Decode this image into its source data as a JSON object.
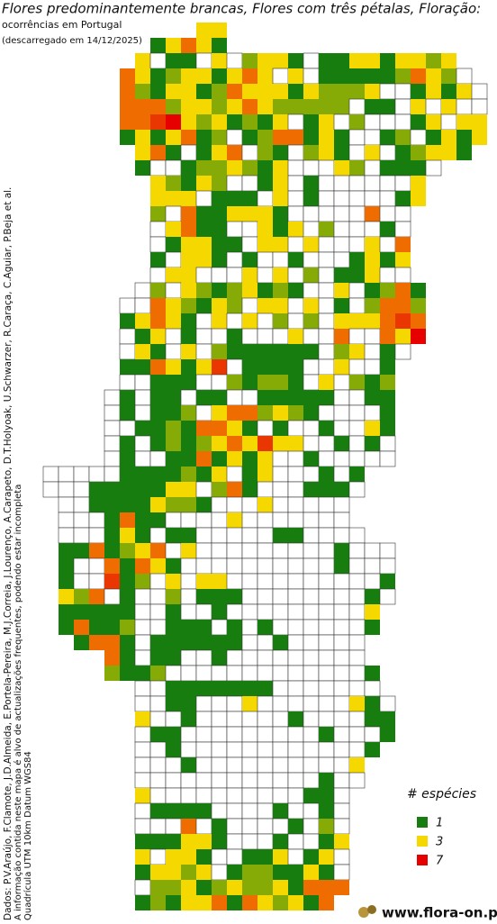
{
  "header": {
    "title": "Flores predominantemente brancas, Flores com três pétalas, Floração:",
    "subtitle": "ocorrências em Portugal",
    "download": "(descarregado em 14/12/2025)"
  },
  "credits": [
    "Dados: P.V.Araújo, F.Clamote, J.D.Almeida, E.Portela-Pereira, M.J.Correia, J.Lourenço, A.Carapeto, D.T.Holyoak, U.Schwarzer, R.Caraça, C.Aguiar, P.Beja et al.",
    "A informação contida neste mapa é alvo de actualizações frequentes, podendo estar incompleta",
    "Quadrícula UTM 10km Datum WGS84"
  ],
  "legend": {
    "title": "# espécies",
    "items": [
      {
        "value": 1,
        "color": "#177d0e"
      },
      {
        "value": 3,
        "color": "#f5d800"
      },
      {
        "value": 7,
        "color": "#e60000"
      }
    ]
  },
  "logo": "www.flora-on.pt",
  "grid": {
    "rows": [
      [
        null,
        null,
        null,
        null,
        null,
        null,
        null,
        null,
        null,
        null,
        3,
        3
      ],
      [
        null,
        null,
        null,
        null,
        null,
        null,
        null,
        1,
        3,
        5,
        3,
        1
      ],
      [
        null,
        null,
        null,
        null,
        null,
        null,
        3,
        0,
        1,
        1,
        0,
        3,
        0,
        2,
        3,
        3,
        1,
        0,
        1,
        1,
        3,
        3,
        1,
        3,
        3,
        2,
        3
      ],
      [
        null,
        null,
        null,
        null,
        null,
        5,
        3,
        1,
        2,
        3,
        3,
        1,
        3,
        5,
        3,
        0,
        3,
        0,
        1,
        1,
        1,
        1,
        1,
        2,
        5,
        3,
        2,
        0
      ],
      [
        null,
        null,
        null,
        null,
        null,
        5,
        2,
        1,
        3,
        3,
        1,
        2,
        5,
        3,
        3,
        3,
        1,
        3,
        2,
        2,
        2,
        3,
        0,
        0,
        1,
        3,
        1,
        3,
        0
      ],
      [
        null,
        null,
        null,
        null,
        null,
        5,
        5,
        5,
        2,
        3,
        3,
        2,
        3,
        5,
        3,
        2,
        2,
        2,
        2,
        2,
        0,
        1,
        1,
        0,
        3,
        0,
        3,
        0,
        0
      ],
      [
        null,
        null,
        null,
        null,
        null,
        5,
        5,
        6,
        7,
        3,
        2,
        3,
        1,
        2,
        1,
        3,
        0,
        1,
        3,
        0,
        2,
        0,
        0,
        0,
        1,
        3,
        0,
        3,
        3
      ],
      [
        null,
        null,
        null,
        null,
        null,
        1,
        3,
        1,
        3,
        5,
        1,
        2,
        0,
        1,
        2,
        5,
        5,
        1,
        3,
        1,
        0,
        0,
        1,
        2,
        0,
        1,
        3,
        1,
        3
      ],
      [
        null,
        null,
        null,
        null,
        null,
        null,
        3,
        5,
        1,
        0,
        1,
        3,
        5,
        0,
        2,
        1,
        0,
        2,
        3,
        1,
        0,
        3,
        0,
        1,
        2,
        3,
        3,
        1
      ],
      [
        null,
        null,
        null,
        null,
        null,
        null,
        1,
        0,
        0,
        1,
        2,
        2,
        3,
        2,
        1,
        3,
        0,
        0,
        0,
        3,
        2,
        0,
        1,
        1,
        1,
        0
      ],
      [
        null,
        null,
        null,
        null,
        null,
        null,
        null,
        3,
        2,
        1,
        3,
        2,
        0,
        0,
        1,
        3,
        0,
        1,
        0,
        0,
        0,
        0,
        0,
        0,
        3
      ],
      [
        null,
        null,
        null,
        null,
        null,
        null,
        null,
        3,
        3,
        3,
        0,
        1,
        1,
        1,
        0,
        3,
        0,
        1,
        0,
        0,
        0,
        0,
        0,
        1,
        3
      ],
      [
        null,
        null,
        null,
        null,
        null,
        null,
        null,
        2,
        0,
        5,
        1,
        1,
        3,
        3,
        3,
        1,
        0,
        0,
        0,
        0,
        0,
        5,
        0,
        0
      ],
      [
        null,
        null,
        null,
        null,
        null,
        null,
        null,
        0,
        3,
        5,
        1,
        1,
        0,
        0,
        3,
        1,
        3,
        0,
        2,
        0,
        0,
        0,
        1,
        0
      ],
      [
        null,
        null,
        null,
        null,
        null,
        null,
        null,
        0,
        1,
        3,
        3,
        1,
        1,
        0,
        3,
        3,
        0,
        3,
        0,
        0,
        0,
        3,
        0,
        5
      ],
      [
        null,
        null,
        null,
        null,
        null,
        null,
        null,
        1,
        0,
        3,
        3,
        1,
        0,
        1,
        0,
        0,
        1,
        0,
        0,
        0,
        1,
        3,
        1,
        3
      ],
      [
        null,
        null,
        null,
        null,
        null,
        null,
        null,
        0,
        3,
        3,
        0,
        0,
        0,
        3,
        0,
        3,
        0,
        2,
        0,
        1,
        1,
        3,
        0,
        0
      ],
      [
        null,
        null,
        null,
        null,
        null,
        null,
        0,
        2,
        0,
        3,
        2,
        1,
        2,
        3,
        1,
        2,
        1,
        0,
        0,
        3,
        0,
        1,
        2,
        5,
        1
      ],
      [
        null,
        null,
        null,
        null,
        null,
        0,
        0,
        5,
        3,
        2,
        1,
        3,
        2,
        0,
        3,
        3,
        0,
        3,
        0,
        1,
        0,
        2,
        5,
        5,
        2
      ],
      [
        null,
        null,
        null,
        null,
        null,
        1,
        3,
        5,
        3,
        1,
        0,
        3,
        0,
        3,
        0,
        2,
        0,
        2,
        0,
        3,
        3,
        3,
        5,
        6,
        5
      ],
      [
        null,
        null,
        null,
        null,
        null,
        0,
        1,
        3,
        0,
        1,
        0,
        0,
        1,
        0,
        0,
        0,
        3,
        0,
        0,
        5,
        0,
        0,
        5,
        3,
        7
      ],
      [
        null,
        null,
        null,
        null,
        null,
        0,
        3,
        1,
        0,
        3,
        0,
        2,
        1,
        1,
        1,
        1,
        1,
        1,
        0,
        2,
        3,
        0,
        1,
        0
      ],
      [
        null,
        null,
        null,
        null,
        null,
        1,
        1,
        5,
        3,
        1,
        3,
        6,
        0,
        1,
        1,
        1,
        1,
        0,
        0,
        3,
        0,
        0,
        1
      ],
      [
        null,
        null,
        null,
        null,
        null,
        0,
        0,
        1,
        1,
        1,
        0,
        0,
        2,
        1,
        2,
        2,
        1,
        0,
        3,
        0,
        2,
        1,
        2
      ],
      [
        null,
        null,
        null,
        null,
        0,
        1,
        0,
        1,
        1,
        0,
        1,
        1,
        0,
        0,
        1,
        1,
        1,
        1,
        1,
        0,
        0,
        1,
        1
      ],
      [
        null,
        null,
        null,
        null,
        0,
        1,
        0,
        1,
        1,
        2,
        0,
        3,
        5,
        5,
        2,
        3,
        2,
        1,
        0,
        0,
        0,
        0,
        1
      ],
      [
        null,
        null,
        null,
        null,
        0,
        0,
        1,
        1,
        2,
        1,
        5,
        5,
        3,
        1,
        0,
        1,
        0,
        0,
        1,
        0,
        0,
        3,
        1
      ],
      [
        null,
        null,
        null,
        null,
        0,
        1,
        0,
        1,
        2,
        1,
        2,
        3,
        5,
        3,
        6,
        3,
        3,
        0,
        0,
        1,
        0,
        1,
        0
      ],
      [
        null,
        null,
        null,
        null,
        0,
        1,
        0,
        0,
        1,
        1,
        5,
        1,
        3,
        1,
        3,
        0,
        0,
        1,
        0,
        0,
        0,
        0,
        0
      ],
      [
        0,
        0,
        0,
        0,
        0,
        1,
        1,
        1,
        1,
        2,
        1,
        3,
        0,
        1,
        3,
        0,
        0,
        0,
        1,
        0,
        1
      ],
      [
        0,
        0,
        0,
        1,
        1,
        1,
        1,
        1,
        3,
        3,
        0,
        2,
        5,
        1,
        0,
        0,
        0,
        1,
        1,
        1,
        0
      ],
      [
        null,
        0,
        0,
        1,
        1,
        1,
        1,
        3,
        2,
        2,
        1,
        0,
        0,
        0,
        3,
        0,
        0,
        0,
        0,
        0
      ],
      [
        null,
        0,
        0,
        0,
        1,
        5,
        1,
        1,
        0,
        0,
        0,
        0,
        3,
        0,
        0,
        0,
        0,
        0,
        0,
        0
      ],
      [
        null,
        0,
        0,
        0,
        1,
        3,
        1,
        0,
        1,
        1,
        0,
        0,
        0,
        0,
        0,
        1,
        1,
        0,
        0,
        0,
        0
      ],
      [
        null,
        1,
        1,
        5,
        1,
        2,
        3,
        5,
        0,
        3,
        0,
        0,
        0,
        0,
        0,
        0,
        0,
        0,
        0,
        1,
        0,
        0,
        0
      ],
      [
        null,
        1,
        0,
        0,
        5,
        1,
        5,
        3,
        1,
        0,
        0,
        0,
        0,
        0,
        0,
        0,
        0,
        0,
        0,
        1,
        0,
        0,
        0
      ],
      [
        null,
        1,
        0,
        0,
        6,
        1,
        2,
        0,
        3,
        0,
        3,
        3,
        0,
        0,
        0,
        0,
        0,
        0,
        0,
        0,
        0,
        0,
        1
      ],
      [
        null,
        3,
        2,
        5,
        0,
        1,
        0,
        0,
        2,
        0,
        1,
        1,
        1,
        0,
        0,
        0,
        0,
        0,
        0,
        0,
        0,
        1,
        0
      ],
      [
        null,
        1,
        1,
        1,
        1,
        1,
        0,
        0,
        1,
        0,
        0,
        1,
        0,
        0,
        0,
        0,
        0,
        0,
        0,
        0,
        0,
        3
      ],
      [
        null,
        1,
        5,
        1,
        1,
        2,
        0,
        0,
        1,
        1,
        1,
        0,
        1,
        0,
        1,
        0,
        0,
        0,
        0,
        0,
        0,
        1
      ],
      [
        null,
        null,
        1,
        5,
        5,
        1,
        0,
        1,
        1,
        1,
        1,
        1,
        1,
        0,
        0,
        1,
        0,
        0,
        0,
        0,
        0
      ],
      [
        null,
        null,
        null,
        null,
        5,
        1,
        0,
        1,
        1,
        0,
        0,
        1,
        0,
        0,
        0,
        0,
        0,
        0,
        0,
        0,
        0
      ],
      [
        null,
        null,
        null,
        null,
        2,
        1,
        1,
        2,
        0,
        0,
        0,
        0,
        0,
        0,
        0,
        0,
        0,
        0,
        0,
        0,
        0,
        1
      ],
      [
        null,
        null,
        null,
        null,
        null,
        null,
        0,
        0,
        1,
        1,
        1,
        1,
        1,
        1,
        1,
        0,
        0,
        0,
        0,
        0,
        0,
        0
      ],
      [
        null,
        null,
        null,
        null,
        null,
        null,
        0,
        0,
        1,
        1,
        0,
        0,
        0,
        3,
        0,
        0,
        0,
        0,
        0,
        0,
        3,
        1,
        0
      ],
      [
        null,
        null,
        null,
        null,
        null,
        null,
        3,
        0,
        0,
        1,
        0,
        0,
        0,
        0,
        0,
        0,
        1,
        0,
        0,
        0,
        0,
        1,
        1
      ],
      [
        null,
        null,
        null,
        null,
        null,
        null,
        0,
        1,
        1,
        0,
        0,
        0,
        0,
        0,
        0,
        0,
        0,
        0,
        1,
        0,
        0,
        0,
        1
      ],
      [
        null,
        null,
        null,
        null,
        null,
        null,
        0,
        0,
        1,
        0,
        0,
        0,
        0,
        0,
        0,
        0,
        0,
        0,
        0,
        0,
        0,
        1
      ],
      [
        null,
        null,
        null,
        null,
        null,
        null,
        0,
        0,
        0,
        1,
        0,
        0,
        0,
        0,
        0,
        0,
        0,
        0,
        0,
        0,
        3
      ],
      [
        null,
        null,
        null,
        null,
        null,
        null,
        0,
        0,
        0,
        0,
        0,
        0,
        0,
        0,
        0,
        0,
        0,
        0,
        1,
        0,
        0
      ],
      [
        null,
        null,
        null,
        null,
        null,
        null,
        3,
        0,
        0,
        0,
        0,
        0,
        0,
        0,
        0,
        0,
        0,
        1,
        1,
        0
      ],
      [
        null,
        null,
        null,
        null,
        null,
        null,
        0,
        1,
        1,
        1,
        1,
        0,
        0,
        0,
        0,
        1,
        0,
        0,
        1,
        0
      ],
      [
        null,
        null,
        null,
        null,
        null,
        null,
        0,
        0,
        0,
        5,
        0,
        1,
        0,
        0,
        0,
        0,
        1,
        0,
        2,
        0
      ],
      [
        null,
        null,
        null,
        null,
        null,
        null,
        1,
        1,
        1,
        3,
        3,
        1,
        0,
        0,
        0,
        1,
        0,
        0,
        1,
        3
      ],
      [
        null,
        null,
        null,
        null,
        null,
        null,
        3,
        0,
        3,
        3,
        1,
        0,
        0,
        1,
        1,
        3,
        0,
        1,
        3,
        0
      ],
      [
        null,
        null,
        null,
        null,
        null,
        null,
        1,
        3,
        3,
        2,
        3,
        0,
        1,
        2,
        2,
        1,
        1,
        3,
        1,
        0
      ],
      [
        null,
        null,
        null,
        null,
        null,
        null,
        0,
        2,
        2,
        3,
        1,
        2,
        3,
        2,
        2,
        3,
        1,
        5,
        5,
        5
      ],
      [
        null,
        null,
        null,
        null,
        null,
        null,
        1,
        2,
        1,
        3,
        3,
        5,
        1,
        5,
        3,
        2,
        3,
        1,
        5
      ]
    ]
  }
}
